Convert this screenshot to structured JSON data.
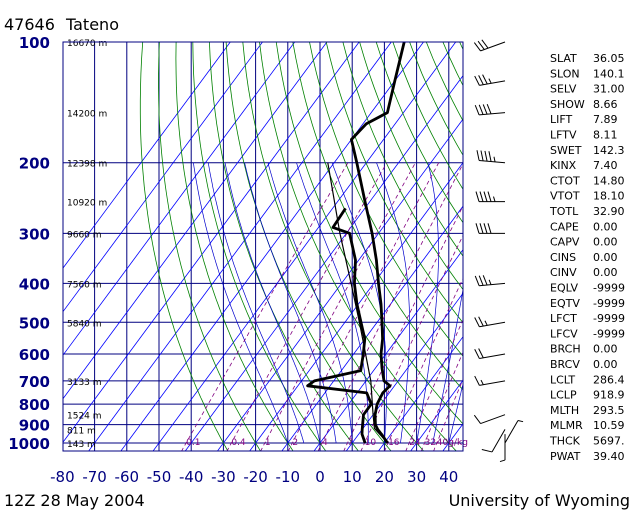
{
  "header": {
    "station_id": "47646",
    "station_name": "Tateno"
  },
  "footer": {
    "time": "12Z 28 May 2004",
    "source": "University of Wyoming"
  },
  "colors": {
    "frame": "#000080",
    "isotherm": "#0000ff",
    "dry_adiabat": "#008000",
    "moist_adiabat": "#0000cc",
    "mixing_ratio": "#800080",
    "profile": "#000000"
  },
  "chart_data": {
    "type": "line",
    "title": "47646 Tateno",
    "pressure_ticks": [
      100,
      200,
      300,
      400,
      500,
      600,
      700,
      800,
      900,
      1000
    ],
    "temperature_ticks": [
      -80,
      -70,
      -60,
      -50,
      -40,
      -30,
      -20,
      -10,
      0,
      10,
      20,
      30,
      40
    ],
    "height_labels": [
      {
        "p": 100,
        "label": "16670 m"
      },
      {
        "p": 150,
        "label": "14200 m"
      },
      {
        "p": 200,
        "label": "12398 m"
      },
      {
        "p": 250,
        "label": "10920 m"
      },
      {
        "p": 300,
        "label": "9660 m"
      },
      {
        "p": 400,
        "label": "7560 m"
      },
      {
        "p": 500,
        "label": "5840 m"
      },
      {
        "p": 700,
        "label": "3133 m"
      },
      {
        "p": 850,
        "label": "1524 m"
      },
      {
        "p": 925,
        "label": "811 m"
      },
      {
        "p": 1000,
        "label": "143 m"
      }
    ],
    "mixing_ratio_labels": [
      {
        "w": 0.1,
        "label": "0.1"
      },
      {
        "w": 0.4,
        "label": "0.4"
      },
      {
        "w": 1,
        "label": "1"
      },
      {
        "w": 2,
        "label": "2"
      },
      {
        "w": 4,
        "label": "4"
      },
      {
        "w": 7,
        "label": "7"
      },
      {
        "w": 10,
        "label": "10"
      },
      {
        "w": 16,
        "label": "16"
      },
      {
        "w": 24,
        "label": "24"
      },
      {
        "w": 32,
        "label": "32"
      },
      {
        "w": 40,
        "label": "40g/kg"
      }
    ],
    "temperature_profile": [
      {
        "p": 1000,
        "t": 21.0
      },
      {
        "p": 950,
        "t": 17.0
      },
      {
        "p": 925,
        "t": 14.8
      },
      {
        "p": 900,
        "t": 13.0
      },
      {
        "p": 850,
        "t": 10.6
      },
      {
        "p": 800,
        "t": 8.8
      },
      {
        "p": 750,
        "t": 8.0
      },
      {
        "p": 720,
        "t": 8.6
      },
      {
        "p": 700,
        "t": 5.6
      },
      {
        "p": 650,
        "t": 2.0
      },
      {
        "p": 600,
        "t": -1.5
      },
      {
        "p": 550,
        "t": -4.5
      },
      {
        "p": 500,
        "t": -8.5
      },
      {
        "p": 450,
        "t": -13.0
      },
      {
        "p": 400,
        "t": -18.5
      },
      {
        "p": 350,
        "t": -24.5
      },
      {
        "p": 300,
        "t": -32.0
      },
      {
        "p": 250,
        "t": -41.5
      },
      {
        "p": 200,
        "t": -53.0
      },
      {
        "p": 175,
        "t": -60.0
      },
      {
        "p": 160,
        "t": -59.0
      },
      {
        "p": 150,
        "t": -55.0
      },
      {
        "p": 125,
        "t": -60.0
      },
      {
        "p": 100,
        "t": -66.0
      }
    ],
    "dewpoint_profile": [
      {
        "p": 1000,
        "t": 14.0
      },
      {
        "p": 950,
        "t": 11.0
      },
      {
        "p": 925,
        "t": 10.0
      },
      {
        "p": 900,
        "t": 9.0
      },
      {
        "p": 850,
        "t": 7.0
      },
      {
        "p": 800,
        "t": 7.0
      },
      {
        "p": 750,
        "t": 3.0
      },
      {
        "p": 720,
        "t": -17.0
      },
      {
        "p": 700,
        "t": -16.0
      },
      {
        "p": 660,
        "t": -4.0
      },
      {
        "p": 600,
        "t": -7.0
      },
      {
        "p": 550,
        "t": -10.0
      },
      {
        "p": 500,
        "t": -15.0
      },
      {
        "p": 450,
        "t": -20.5
      },
      {
        "p": 400,
        "t": -26.0
      },
      {
        "p": 350,
        "t": -31.0
      },
      {
        "p": 300,
        "t": -39.0
      },
      {
        "p": 290,
        "t": -45.5
      },
      {
        "p": 260,
        "t": -46.0
      }
    ],
    "parcel_profile": [
      {
        "p": 1000,
        "t": 21.0
      },
      {
        "p": 918.9,
        "t": 13.5
      },
      {
        "p": 850,
        "t": 10.0
      },
      {
        "p": 700,
        "t": 1.5
      },
      {
        "p": 500,
        "t": -15.5
      },
      {
        "p": 400,
        "t": -27.0
      },
      {
        "p": 300,
        "t": -42.0
      },
      {
        "p": 200,
        "t": -62.0
      }
    ],
    "wind_barbs": [
      {
        "p": 1000,
        "dir": 30,
        "spd": 5
      },
      {
        "p": 950,
        "dir": 180,
        "spd": 5
      },
      {
        "p": 925,
        "dir": 210,
        "spd": 10
      },
      {
        "p": 850,
        "dir": 250,
        "spd": 10
      },
      {
        "p": 700,
        "dir": 260,
        "spd": 15
      },
      {
        "p": 600,
        "dir": 260,
        "spd": 20
      },
      {
        "p": 500,
        "dir": 260,
        "spd": 25
      },
      {
        "p": 400,
        "dir": 265,
        "spd": 35
      },
      {
        "p": 300,
        "dir": 270,
        "spd": 40
      },
      {
        "p": 250,
        "dir": 270,
        "spd": 45
      },
      {
        "p": 200,
        "dir": 275,
        "spd": 45
      },
      {
        "p": 150,
        "dir": 265,
        "spd": 40
      },
      {
        "p": 125,
        "dir": 260,
        "spd": 35
      },
      {
        "p": 100,
        "dir": 250,
        "spd": 30
      }
    ],
    "indices": [
      {
        "key": "SLAT",
        "value": "36.05"
      },
      {
        "key": "SLON",
        "value": "140.1"
      },
      {
        "key": "SELV",
        "value": "31.00"
      },
      {
        "key": "SHOW",
        "value": "8.66"
      },
      {
        "key": "LIFT",
        "value": "7.89"
      },
      {
        "key": "LFTV",
        "value": "8.11"
      },
      {
        "key": "SWET",
        "value": "142.3"
      },
      {
        "key": "KINX",
        "value": "7.40"
      },
      {
        "key": "CTOT",
        "value": "14.80"
      },
      {
        "key": "VTOT",
        "value": "18.10"
      },
      {
        "key": "TOTL",
        "value": "32.90"
      },
      {
        "key": "CAPE",
        "value": "0.00"
      },
      {
        "key": "CAPV",
        "value": "0.00"
      },
      {
        "key": "CINS",
        "value": "0.00"
      },
      {
        "key": "CINV",
        "value": "0.00"
      },
      {
        "key": "EQLV",
        "value": "-9999"
      },
      {
        "key": "EQTV",
        "value": "-9999"
      },
      {
        "key": "LFCT",
        "value": "-9999"
      },
      {
        "key": "LFCV",
        "value": "-9999"
      },
      {
        "key": "BRCH",
        "value": "0.00"
      },
      {
        "key": "BRCV",
        "value": "0.00"
      },
      {
        "key": "LCLT",
        "value": "286.4"
      },
      {
        "key": "LCLP",
        "value": "918.9"
      },
      {
        "key": "MLTH",
        "value": "293.5"
      },
      {
        "key": "MLMR",
        "value": "10.59"
      },
      {
        "key": "THCK",
        "value": "5697."
      },
      {
        "key": "PWAT",
        "value": "39.40"
      }
    ]
  }
}
